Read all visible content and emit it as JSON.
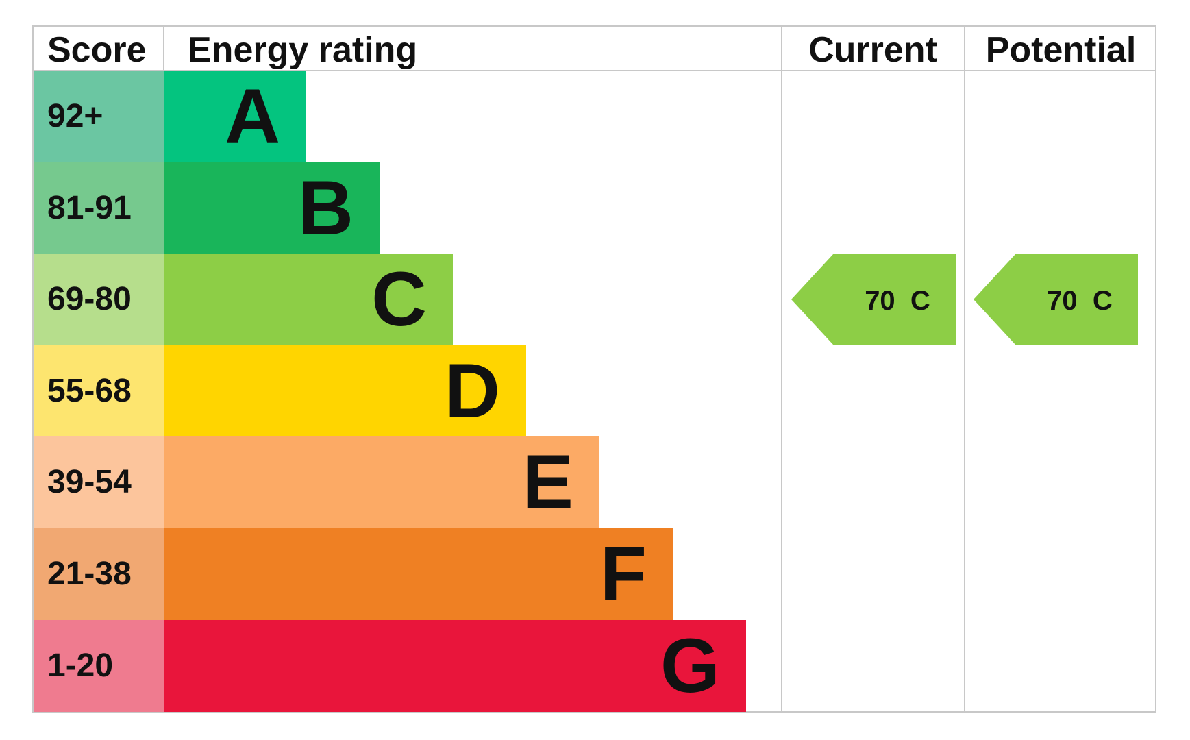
{
  "chart_data": {
    "type": "table",
    "headers": {
      "score": "Score",
      "rating": "Energy rating",
      "current": "Current",
      "potential": "Potential"
    },
    "bands": [
      {
        "score": "92+",
        "letter": "A",
        "score_color": "#6bc6a2",
        "bar_color": "#04c47f"
      },
      {
        "score": "81-91",
        "letter": "B",
        "score_color": "#76c98e",
        "bar_color": "#19b55a"
      },
      {
        "score": "69-80",
        "letter": "C",
        "score_color": "#b6de8c",
        "bar_color": "#8dce46"
      },
      {
        "score": "55-68",
        "letter": "D",
        "score_color": "#fde56f",
        "bar_color": "#ffd500"
      },
      {
        "score": "39-54",
        "letter": "E",
        "score_color": "#fcc59c",
        "bar_color": "#fcaa65"
      },
      {
        "score": "21-38",
        "letter": "F",
        "score_color": "#f1a872",
        "bar_color": "#ef8023"
      },
      {
        "score": "1-20",
        "letter": "G",
        "score_color": "#ef7b8f",
        "bar_color": "#e9153b"
      }
    ],
    "current": {
      "value": 70,
      "band": "C",
      "label": "70  C",
      "color": "#8dce46"
    },
    "potential": {
      "value": 70,
      "band": "C",
      "label": "70  C",
      "color": "#8dce46"
    }
  }
}
